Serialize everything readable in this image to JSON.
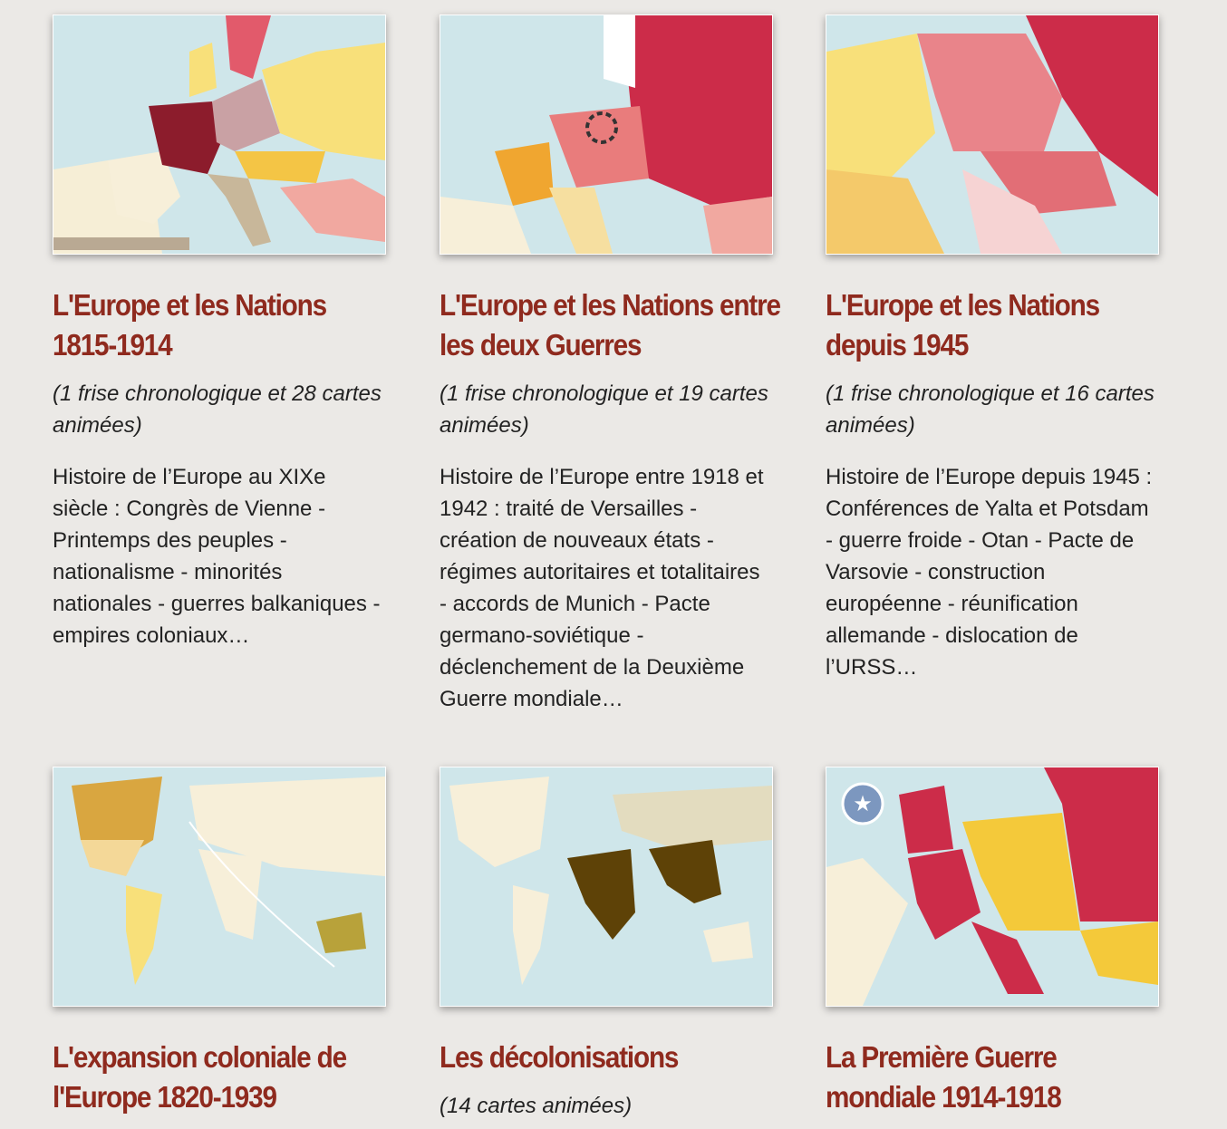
{
  "cards": [
    {
      "title": "L'Europe et les Nations 1815-1914",
      "subtitle": "(1 frise chronologique et 28 cartes animées)",
      "description": "Histoire de l’Europe au XIXe siècle : Congrès de Vienne - Printemps des peuples - nationalisme - minorités nationales - guerres balkaniques - empires coloniaux…",
      "map": "europe-1815-map"
    },
    {
      "title": "L'Europe et les Nations entre les deux Guerres",
      "subtitle": "(1 frise chronologique et 19 cartes animées)",
      "description": "Histoire de l’Europe entre 1918 et 1942 : traité de Versailles - création de nouveaux états - régimes autoritaires et totalitaires - accords de Munich - Pacte germano-soviétique - déclenchement de la Deuxième Guerre mondiale…",
      "map": "europe-interwar-map"
    },
    {
      "title": "L'Europe et les Nations depuis 1945",
      "subtitle": "(1 frise chronologique et 16 cartes animées)",
      "description": "Histoire de l’Europe depuis 1945 : Conférences de Yalta et Potsdam - guerre froide - Otan - Pacte de Varsovie - construction européenne - réunification allemande - dislocation de l’URSS…",
      "map": "europe-1945-map"
    },
    {
      "title": "L'expansion coloniale de l'Europe 1820-1939",
      "map": "colonial-world-map"
    },
    {
      "title": "Les décolonisations",
      "subtitle": "(14 cartes animées)",
      "map": "decolonisation-world-map"
    },
    {
      "title": "La Première Guerre mondiale 1914-1918",
      "map": "ww1-europe-map"
    }
  ],
  "colors": {
    "title": "#8f2a1e",
    "background": "#ebe9e6",
    "sea": "#cfe6ea"
  }
}
